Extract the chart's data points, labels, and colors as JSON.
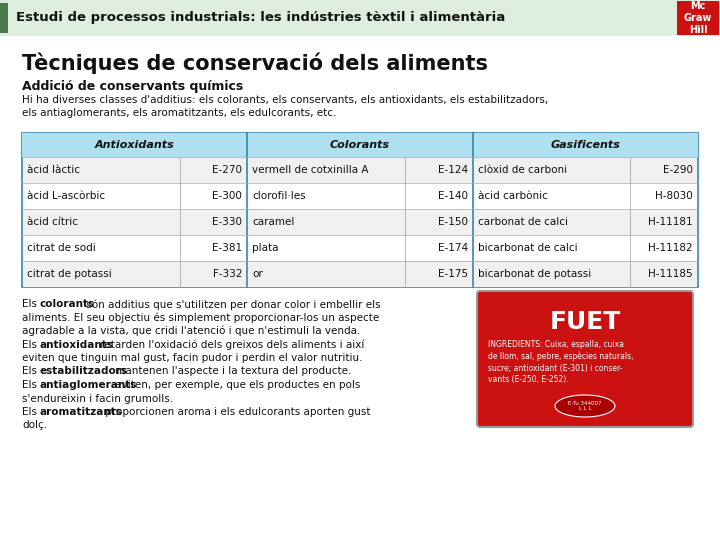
{
  "header_bg": "#deeede",
  "header_green_bar": "#4a7a4e",
  "header_text": "Estudi de processos industrials: les indústries tèxtil i alimentària",
  "mcgraw_bg": "#cc1111",
  "mcgraw_text": "Mc\nGraw\nHill",
  "title": "Tècniques de conservació dels aliments",
  "subtitle": "Addició de conservants químics",
  "intro_text": "Hi ha diverses classes d'additius: els colorants, els conservants, els antioxidants, els estabilitzadors,\nels antiaglomerants, els aromatitzants, els edulcorants, etc.",
  "table_header_bg": "#aee0f0",
  "table_header_border": "#3388aa",
  "table_headers": [
    "Antioxidants",
    "Colorants",
    "Gasificents"
  ],
  "table_rows": [
    [
      "àcid làctic",
      "E-270",
      "vermell de cotxinilla A",
      "E-124",
      "clòxid de carboni",
      "E-290"
    ],
    [
      "àcid L-ascòrbic",
      "E-300",
      "clorofil·les",
      "E-140",
      "àcid carbònic",
      "H-8030"
    ],
    [
      "àcid cítric",
      "E-330",
      "caramel",
      "E-150",
      "carbonat de calci",
      "H-11181"
    ],
    [
      "citrat de sodi",
      "E-381",
      "plata",
      "E-174",
      "bicarbonat de calci",
      "H-11182"
    ],
    [
      "citrat de potassi",
      "F-332",
      "or",
      "E-175",
      "bicarbonat de potassi",
      "H-11185"
    ]
  ],
  "body_paragraphs": [
    {
      "prefix": "Els ",
      "bold": "colorants",
      "suffix": " són additius que s'utilitzen per donar color i embellir els\naliments. El seu objectiu és simplement proporcionar-los un aspecte\nagradable a la vista, que cridi l'atenció i que n'estimuli la venda."
    },
    {
      "prefix": "Els ",
      "bold": "antioxidants",
      "suffix": " retarden l'oxidació dels greixos dels aliments i així\neviten que tinguin mal gust, facin pudor i perdin el valor nutritiu."
    },
    {
      "prefix": "Els ",
      "bold": "estabilitzadors",
      "suffix": " mantenen l'aspecte i la textura del producte."
    },
    {
      "prefix": "Els ",
      "bold": "antiaglomerants",
      "suffix": " eviten, per exemple, que els productes en pols\ns'endureixin i facin grumolls."
    },
    {
      "prefix": "Els ",
      "bold": "aromatitzants",
      "suffix": " proporcionen aroma i els edulcorants aporten gust\ndolç."
    }
  ],
  "fuet_bg": "#cc1111",
  "fuet_title": "FUET",
  "fuet_subtext": "INGREDIENTS: Cuixa, espalla, cuixa\nde llom, sal, pebre, espècies naturals,\nsucre; antioxidant (E-301) i conser-\nvants (E-250, E-252).",
  "fuet_label": "E-Tu 344007\nL L L",
  "bg_color": "#ffffff",
  "fig_w": 7.2,
  "fig_h": 5.4,
  "dpi": 100
}
